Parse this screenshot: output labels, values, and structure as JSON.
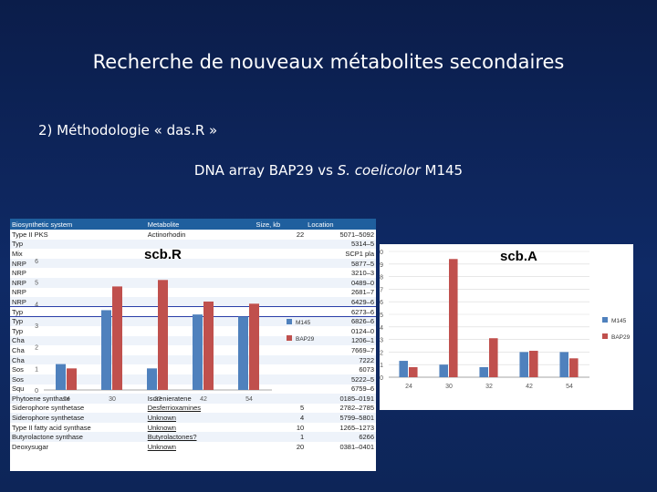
{
  "slide": {
    "title": "Recherche de nouveaux métabolites secondaires",
    "subtitle": "2) Méthodologie « das.R »",
    "dna_prefix": "DNA array BAP29 vs",
    "dna_species": "S. coelicolor",
    "dna_suffix": "M145"
  },
  "table": {
    "headers": [
      "Biosynthetic system",
      "Metabolite",
      "Size, kb",
      "Location"
    ],
    "rows": [
      {
        "system": "Type II PKS",
        "metabolite": "Actinorhodin",
        "size": "22",
        "location": "5071–5092"
      },
      {
        "system": "Typ",
        "metabolite": "",
        "size": "",
        "location": "5314–5"
      },
      {
        "system": "Mix",
        "metabolite": "",
        "size": "",
        "location": "SCP1 pla"
      },
      {
        "system": "NRP",
        "metabolite": "",
        "size": "",
        "location": "5877–5"
      },
      {
        "system": "NRP",
        "metabolite": "",
        "size": "",
        "location": "3210–3"
      },
      {
        "system": "NRP",
        "metabolite": "",
        "size": "",
        "location": "0489–0"
      },
      {
        "system": "NRP",
        "metabolite": "",
        "size": "",
        "location": "2681–7"
      },
      {
        "system": "NRP",
        "metabolite": "",
        "size": "",
        "location": "6429–6"
      },
      {
        "system": "Typ",
        "metabolite": "",
        "size": "",
        "location": "6273–6"
      },
      {
        "system": "Typ",
        "metabolite": "",
        "size": "",
        "location": "6826–6"
      },
      {
        "system": "Typ",
        "metabolite": "",
        "size": "",
        "location": "0124–0"
      },
      {
        "system": "Cha",
        "metabolite": "",
        "size": "",
        "location": "1206–1"
      },
      {
        "system": "Cha",
        "metabolite": "",
        "size": "",
        "location": "7669–7"
      },
      {
        "system": "Cha",
        "metabolite": "",
        "size": "",
        "location": "7222"
      },
      {
        "system": "Sos",
        "metabolite": "",
        "size": "",
        "location": "6073"
      },
      {
        "system": "Sos",
        "metabolite": "",
        "size": "",
        "location": "5222–5"
      },
      {
        "system": "Squ",
        "metabolite": "",
        "size": "",
        "location": "6759–6"
      },
      {
        "system": "Phytoene synthase",
        "metabolite": "Isorenieratene",
        "size": "",
        "location": "0185–0191"
      },
      {
        "system": "Siderophore synthetase",
        "metabolite": "Desferrioxamines",
        "size": "5",
        "location": "2782–2785"
      },
      {
        "system": "Siderophore synthetase",
        "metabolite": "Unknown",
        "size": "4",
        "location": "5799–5801"
      },
      {
        "system": "Type II fatty acid synthase",
        "metabolite": "Unknown",
        "size": "10",
        "location": "1265–1273"
      },
      {
        "system": "Butyrolactone synthase",
        "metabolite": "Butyrolactones?",
        "size": "1",
        "location": "6266"
      },
      {
        "system": "Deoxysugar",
        "metabolite": "Unknown",
        "size": "20",
        "location": "0381–0401"
      }
    ]
  },
  "chart_data": [
    {
      "type": "bar",
      "title": "scb.R",
      "categories": [
        "24",
        "30",
        "32",
        "42",
        "54"
      ],
      "yticks": [
        "0",
        "1",
        "2",
        "3",
        "4",
        "5",
        "6"
      ],
      "ylim": [
        0,
        6
      ],
      "legend": "right",
      "series": [
        {
          "name": "M145",
          "color": "#4f81bd",
          "values": [
            1.2,
            3.7,
            1.0,
            3.5,
            3.4
          ]
        },
        {
          "name": "BAP29",
          "color": "#c0504d",
          "values": [
            1.0,
            4.8,
            5.1,
            4.1,
            4.0
          ]
        }
      ]
    },
    {
      "type": "bar",
      "title": "scb.A",
      "categories": [
        "24",
        "30",
        "32",
        "42",
        "54"
      ],
      "yticks": [
        "0",
        "1",
        "2",
        "3",
        "4",
        "5",
        "6",
        "7",
        "8",
        "9",
        "10"
      ],
      "ylim": [
        0,
        10
      ],
      "legend": "right",
      "series": [
        {
          "name": "M145",
          "color": "#4f81bd",
          "values": [
            1.3,
            1.0,
            0.8,
            2.0,
            2.0
          ]
        },
        {
          "name": "BAP29",
          "color": "#c0504d",
          "values": [
            0.8,
            9.4,
            3.1,
            2.1,
            1.5
          ]
        }
      ]
    }
  ]
}
